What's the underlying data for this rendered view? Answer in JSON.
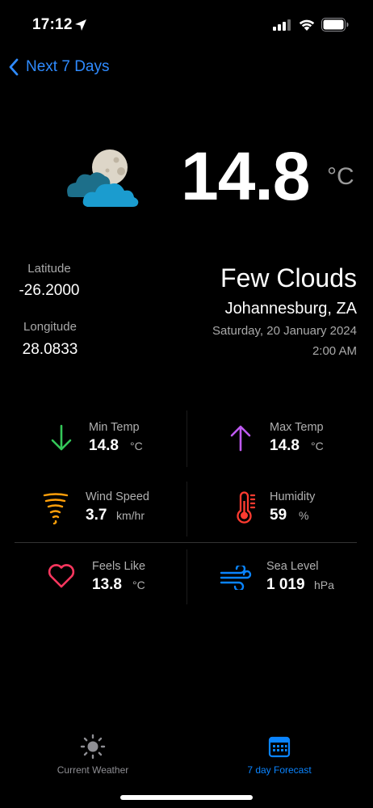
{
  "status_bar": {
    "time": "17:12",
    "icons": [
      "location-arrow-icon",
      "cellular-signal-icon",
      "wifi-icon",
      "battery-icon"
    ]
  },
  "nav": {
    "back_label": "Next 7 Days",
    "back_icon": "chevron-left-icon",
    "accent_color": "#2f8bff"
  },
  "current": {
    "icon": "cloud-moon-icon",
    "temperature": "14.8",
    "unit": "°C",
    "condition": "Few Clouds",
    "location": "Johannesburg, ZA",
    "date": "Saturday, 20 January 2024",
    "time": "2:00 AM"
  },
  "coordinates": {
    "latitude_label": "Latitude",
    "latitude_value": "-26.2000",
    "longitude_label": "Longitude",
    "longitude_value": "28.0833"
  },
  "stats": {
    "min_temp": {
      "label": "Min Temp",
      "value": "14.8",
      "unit": "°C",
      "icon": "arrow-down-icon",
      "color": "#34c759"
    },
    "max_temp": {
      "label": "Max Temp",
      "value": "14.8",
      "unit": "°C",
      "icon": "arrow-up-icon",
      "color": "#bf5af2"
    },
    "wind_speed": {
      "label": "Wind Speed",
      "value": "3.7",
      "unit": "km/hr",
      "icon": "tornado-icon",
      "color": "#ff9f0a"
    },
    "humidity": {
      "label": "Humidity",
      "value": "59",
      "unit": "%",
      "icon": "thermometer-icon",
      "color": "#ff3b30"
    },
    "feels_like": {
      "label": "Feels Like",
      "value": "13.8",
      "unit": "°C",
      "icon": "heart-icon",
      "color": "#ff375f"
    },
    "sea_level": {
      "label": "Sea Level",
      "value": "1 019",
      "unit": "hPa",
      "icon": "wind-icon",
      "color": "#0a84ff"
    }
  },
  "tab_bar": {
    "tabs": [
      {
        "label": "Current Weather",
        "icon": "sun-icon",
        "active": false,
        "color": "#8e8e93"
      },
      {
        "label": "7 day Forecast",
        "icon": "calendar-icon",
        "active": true,
        "color": "#0a84ff"
      }
    ]
  }
}
